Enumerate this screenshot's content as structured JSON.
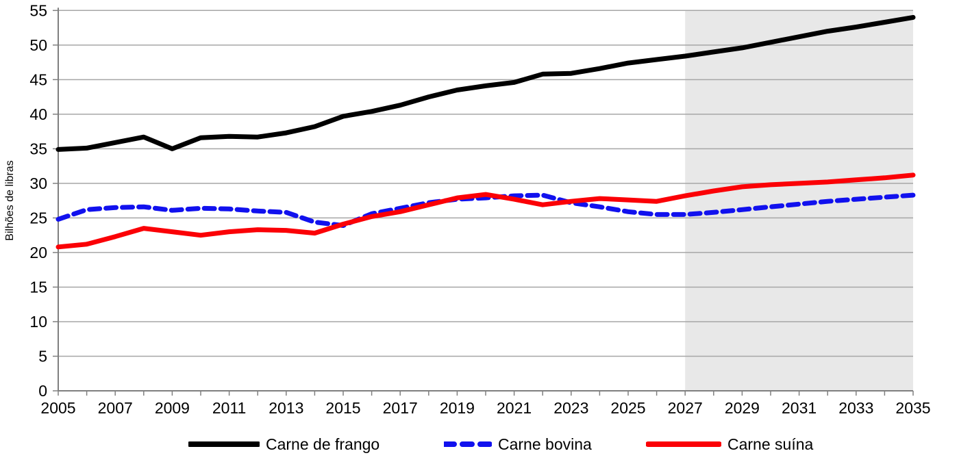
{
  "chart_data": {
    "type": "line",
    "title": "",
    "ylabel": "Bilhões de libras",
    "xlabel": "",
    "xlim": [
      2005,
      2035
    ],
    "ylim": [
      0,
      55
    ],
    "y_ticks": [
      0,
      5,
      10,
      15,
      20,
      25,
      30,
      35,
      40,
      45,
      50,
      55
    ],
    "x_tick_labels": [
      2005,
      2007,
      2009,
      2011,
      2013,
      2015,
      2017,
      2019,
      2021,
      2023,
      2025,
      2027,
      2029,
      2031,
      2033,
      2035
    ],
    "grid": true,
    "legend_position": "bottom",
    "forecast_region": {
      "start": 2027,
      "end": 2035
    },
    "x": [
      2005,
      2006,
      2007,
      2008,
      2009,
      2010,
      2011,
      2012,
      2013,
      2014,
      2015,
      2016,
      2017,
      2018,
      2019,
      2020,
      2021,
      2022,
      2023,
      2024,
      2025,
      2026,
      2027,
      2028,
      2029,
      2030,
      2031,
      2032,
      2033,
      2034,
      2035
    ],
    "series": [
      {
        "name": "Carne de frango",
        "color": "#000000",
        "style": "solid",
        "values": [
          34.9,
          35.1,
          35.9,
          36.7,
          35.0,
          36.6,
          36.8,
          36.7,
          37.3,
          38.2,
          39.7,
          40.4,
          41.3,
          42.5,
          43.5,
          44.1,
          44.6,
          45.8,
          45.9,
          46.6,
          47.4,
          47.9,
          48.4,
          49.0,
          49.6,
          50.4,
          51.2,
          52.0,
          52.6,
          53.3,
          54.0
        ]
      },
      {
        "name": "Carne bovina",
        "color": "#1111ee",
        "style": "dashed",
        "values": [
          24.8,
          26.2,
          26.5,
          26.6,
          26.1,
          26.4,
          26.3,
          26.0,
          25.8,
          24.4,
          23.9,
          25.6,
          26.4,
          27.2,
          27.7,
          27.9,
          28.2,
          28.3,
          27.2,
          26.6,
          25.9,
          25.5,
          25.5,
          25.8,
          26.2,
          26.6,
          27.0,
          27.4,
          27.7,
          28.0,
          28.3
        ]
      },
      {
        "name": "Carne suína",
        "color": "#fb0006",
        "style": "solid",
        "values": [
          20.8,
          21.2,
          22.3,
          23.5,
          23.0,
          22.5,
          23.0,
          23.3,
          23.2,
          22.8,
          24.1,
          25.2,
          25.9,
          26.9,
          27.9,
          28.4,
          27.7,
          26.9,
          27.4,
          27.8,
          27.6,
          27.4,
          28.2,
          28.9,
          29.5,
          29.8,
          30.0,
          30.2,
          30.5,
          30.8,
          31.2
        ]
      }
    ],
    "colors": {
      "gridline": "#a6a6a6",
      "axis": "#7f7f7f",
      "tick": "#7f7f7f",
      "forecast_shade": "#e8e8e8",
      "label": "#000000"
    }
  }
}
